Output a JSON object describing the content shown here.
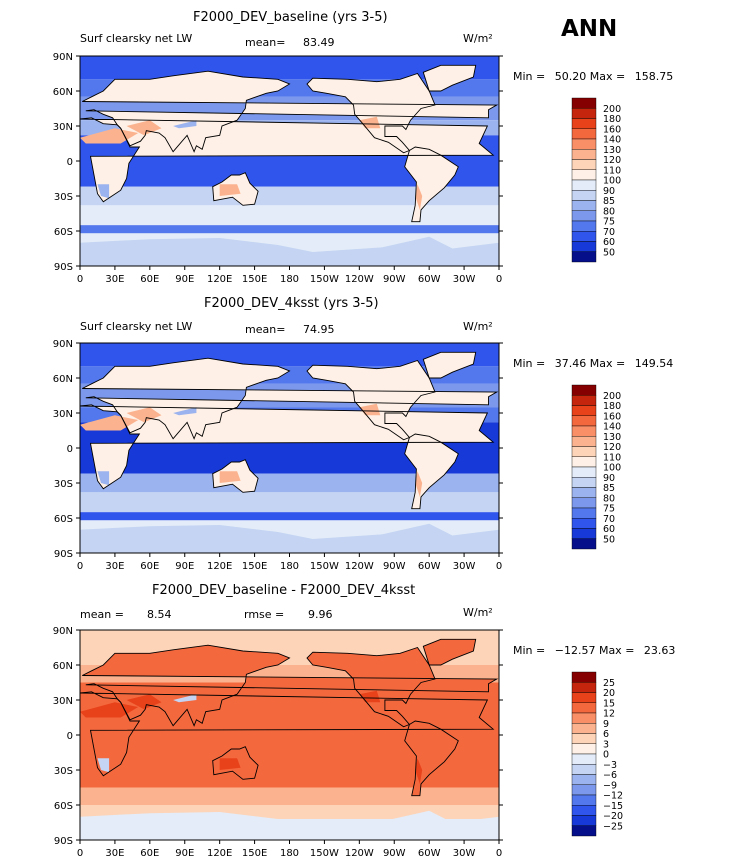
{
  "header": {
    "season": "ANN"
  },
  "chart_data": [
    {
      "type": "heatmap",
      "title": "F2000_DEV_baseline (yrs 3-5)",
      "left_label": "Surf clearsky net LW",
      "center_label": "mean=",
      "center_value": "83.49",
      "units": "W/m²",
      "minmax": {
        "min_label": "Min =",
        "min": "50.20",
        "max_label": "Max =",
        "max": "158.75"
      },
      "y_ticks": [
        "90N",
        "60N",
        "30N",
        "0",
        "30S",
        "60S",
        "90S"
      ],
      "x_ticks": [
        "0",
        "30E",
        "60E",
        "90E",
        "120E",
        "150E",
        "180",
        "150W",
        "120W",
        "90W",
        "60W",
        "30W",
        "0"
      ],
      "colorbar": {
        "labels": [
          "200",
          "180",
          "160",
          "140",
          "130",
          "120",
          "110",
          "100",
          "90",
          "85",
          "80",
          "75",
          "70",
          "60",
          "50"
        ],
        "colors": [
          "#850000",
          "#c4250c",
          "#e8421a",
          "#f4683e",
          "#f88f66",
          "#fbb38f",
          "#fdd4b8",
          "#fef0e6",
          "#e3ecf8",
          "#c4d4f2",
          "#9bb3ee",
          "#7b98ec",
          "#5377ec",
          "#3055ec",
          "#1639d8",
          "#050f8a"
        ]
      }
    },
    {
      "type": "heatmap",
      "title": "F2000_DEV_4ksst (yrs 3-5)",
      "left_label": "Surf clearsky net LW",
      "center_label": "mean=",
      "center_value": "74.95",
      "units": "W/m²",
      "minmax": {
        "min_label": "Min =",
        "min": "37.46",
        "max_label": "Max =",
        "max": "149.54"
      },
      "y_ticks": [
        "90N",
        "60N",
        "30N",
        "0",
        "30S",
        "60S",
        "90S"
      ],
      "x_ticks": [
        "0",
        "30E",
        "60E",
        "90E",
        "120E",
        "150E",
        "180",
        "150W",
        "120W",
        "90W",
        "60W",
        "30W",
        "0"
      ],
      "colorbar": {
        "labels": [
          "200",
          "180",
          "160",
          "140",
          "130",
          "120",
          "110",
          "100",
          "90",
          "85",
          "80",
          "75",
          "70",
          "60",
          "50"
        ],
        "colors": [
          "#850000",
          "#c4250c",
          "#e8421a",
          "#f4683e",
          "#f88f66",
          "#fbb38f",
          "#fdd4b8",
          "#fef0e6",
          "#e3ecf8",
          "#c4d4f2",
          "#9bb3ee",
          "#7b98ec",
          "#5377ec",
          "#3055ec",
          "#1639d8",
          "#050f8a"
        ]
      }
    },
    {
      "type": "heatmap",
      "title": "F2000_DEV_baseline - F2000_DEV_4ksst",
      "left_label": "mean =",
      "left_value": "8.54",
      "center_label": "rmse =",
      "center_value": "9.96",
      "units": "W/m²",
      "minmax": {
        "min_label": "Min =",
        "min": "−12.57",
        "max_label": "Max =",
        "max": "23.63"
      },
      "y_ticks": [
        "90N",
        "60N",
        "30N",
        "0",
        "30S",
        "60S",
        "90S"
      ],
      "x_ticks": [
        "0",
        "30E",
        "60E",
        "90E",
        "120E",
        "150E",
        "180",
        "150W",
        "120W",
        "90W",
        "60W",
        "30W",
        "0"
      ],
      "colorbar": {
        "labels": [
          "25",
          "20",
          "15",
          "12",
          "9",
          "6",
          "3",
          "0",
          "−3",
          "−6",
          "−9",
          "−12",
          "−15",
          "−20",
          "−25"
        ],
        "colors": [
          "#850000",
          "#c4250c",
          "#e8421a",
          "#f4683e",
          "#f88f66",
          "#fbb38f",
          "#fdd4b8",
          "#fef0e6",
          "#e3ecf8",
          "#c4d4f2",
          "#9bb3ee",
          "#7b98ec",
          "#5377ec",
          "#3055ec",
          "#1639d8",
          "#050f8a"
        ]
      }
    }
  ]
}
